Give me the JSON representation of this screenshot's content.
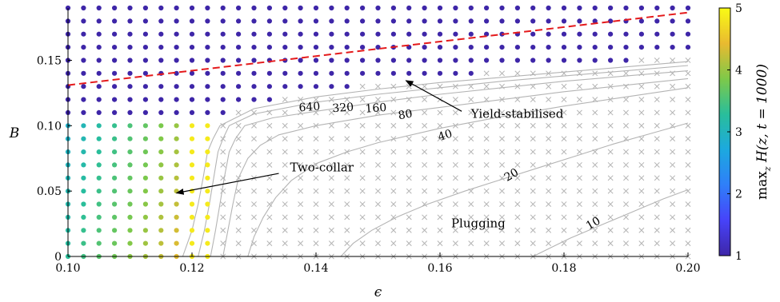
{
  "chart_data": {
    "type": "scatter",
    "xlabel": "ϵ",
    "ylabel": "B",
    "xlim": [
      0.1,
      0.2
    ],
    "ylim": [
      0,
      0.19
    ],
    "x_ticks": [
      {
        "v": 0.1,
        "label": "0.10"
      },
      {
        "v": 0.12,
        "label": "0.12"
      },
      {
        "v": 0.14,
        "label": "0.14"
      },
      {
        "v": 0.16,
        "label": "0.16"
      },
      {
        "v": 0.18,
        "label": "0.18"
      },
      {
        "v": 0.2,
        "label": "0.20"
      }
    ],
    "y_ticks": [
      {
        "v": 0,
        "label": "0"
      },
      {
        "v": 0.05,
        "label": "0.05"
      },
      {
        "v": 0.1,
        "label": "0.10"
      },
      {
        "v": 0.15,
        "label": "0.15"
      }
    ],
    "grid": {
      "x_start": 0.1,
      "x_step": 0.0025,
      "x_count": 41,
      "y_start": 0,
      "y_step": 0.01,
      "y_count": 20
    },
    "colorbar": {
      "label": "max_z H(z, t = 1000)",
      "label_main": "max",
      "label_sub": "z",
      "label_rest": " H(z, t = 1000)",
      "min": 1,
      "max": 5,
      "ticks": [
        {
          "v": 1,
          "label": "1"
        },
        {
          "v": 2,
          "label": "2"
        },
        {
          "v": 3,
          "label": "3"
        },
        {
          "v": 4,
          "label": "4"
        },
        {
          "v": 5,
          "label": "5"
        }
      ],
      "colormap": [
        "#3e26a8",
        "#4743f9",
        "#2f7ff9",
        "#1ca9df",
        "#29be9b",
        "#7ec949",
        "#e9ba30",
        "#f9fb15"
      ]
    },
    "yield_line": {
      "x": [
        0.1,
        0.2
      ],
      "y": [
        0.131,
        0.1865
      ],
      "color": "#e41a1c"
    },
    "regions": {
      "yield_stabilised": {
        "color_value": 1.0
      },
      "two_collar": {
        "x_max": 0.1225,
        "y_max": 0.1,
        "color_value_min": 3.3,
        "color_value_max": 4.7
      }
    },
    "plugging_marker": "×",
    "marker_color": "#b4b4b4",
    "contours": [
      {
        "label": "640",
        "x": [
          0.1185,
          0.12,
          0.121,
          0.1218,
          0.1225,
          0.1234,
          0.1245,
          0.13,
          0.14,
          0.15,
          0.16,
          0.17,
          0.18,
          0.19,
          0.2
        ],
        "y": [
          0.0,
          0.02,
          0.04,
          0.06,
          0.08,
          0.09,
          0.1,
          0.113,
          0.122,
          0.128,
          0.133,
          0.137,
          0.141,
          0.145,
          0.149
        ]
      },
      {
        "label": "320",
        "x": [
          0.121,
          0.122,
          0.1228,
          0.1235,
          0.1242,
          0.125,
          0.126,
          0.13,
          0.14,
          0.15,
          0.16,
          0.17,
          0.18,
          0.19,
          0.2
        ],
        "y": [
          0.0,
          0.02,
          0.04,
          0.06,
          0.08,
          0.09,
          0.1,
          0.109,
          0.118,
          0.124,
          0.129,
          0.134,
          0.138,
          0.142,
          0.146
        ]
      },
      {
        "label": "160",
        "x": [
          0.123,
          0.1238,
          0.1245,
          0.1252,
          0.126,
          0.127,
          0.1285,
          0.133,
          0.14,
          0.15,
          0.16,
          0.17,
          0.18,
          0.19,
          0.2
        ],
        "y": [
          0.0,
          0.02,
          0.04,
          0.06,
          0.08,
          0.09,
          0.1,
          0.106,
          0.111,
          0.118,
          0.124,
          0.129,
          0.134,
          0.138,
          0.142
        ]
      },
      {
        "label": "80",
        "x": [
          0.125,
          0.1258,
          0.1266,
          0.1275,
          0.129,
          0.131,
          0.134,
          0.14,
          0.15,
          0.16,
          0.17,
          0.18,
          0.19,
          0.2
        ],
        "y": [
          0.0,
          0.02,
          0.04,
          0.06,
          0.075,
          0.085,
          0.093,
          0.1,
          0.108,
          0.114,
          0.12,
          0.126,
          0.131,
          0.136
        ]
      },
      {
        "label": "40",
        "x": [
          0.129,
          0.13,
          0.1315,
          0.1335,
          0.136,
          0.14,
          0.145,
          0.15,
          0.16,
          0.17,
          0.18,
          0.19,
          0.2
        ],
        "y": [
          0.0,
          0.015,
          0.03,
          0.045,
          0.058,
          0.071,
          0.08,
          0.087,
          0.098,
          0.107,
          0.115,
          0.122,
          0.129
        ]
      },
      {
        "label": "20",
        "x": [
          0.144,
          0.146,
          0.149,
          0.153,
          0.158,
          0.164,
          0.17,
          0.176,
          0.182,
          0.188,
          0.194,
          0.2
        ],
        "y": [
          0.0,
          0.01,
          0.02,
          0.03,
          0.04,
          0.05,
          0.059,
          0.068,
          0.077,
          0.086,
          0.094,
          0.102
        ]
      },
      {
        "label": "10",
        "x": [
          0.175,
          0.178,
          0.181,
          0.184,
          0.187,
          0.19,
          0.193,
          0.196,
          0.2
        ],
        "y": [
          0.0,
          0.007,
          0.014,
          0.02,
          0.026,
          0.032,
          0.038,
          0.044,
          0.051
        ]
      }
    ],
    "contour_labels": [
      {
        "text": "640",
        "x": 0.139,
        "y": 0.1115,
        "angle": -4
      },
      {
        "text": "320",
        "x": 0.1444,
        "y": 0.111,
        "angle": -4
      },
      {
        "text": "160",
        "x": 0.1497,
        "y": 0.1107,
        "angle": -4
      },
      {
        "text": "80",
        "x": 0.1545,
        "y": 0.1058,
        "angle": -10
      },
      {
        "text": "40",
        "x": 0.161,
        "y": 0.09,
        "angle": -18
      },
      {
        "text": "20",
        "x": 0.1718,
        "y": 0.06,
        "angle": -30
      },
      {
        "text": "10",
        "x": 0.185,
        "y": 0.023,
        "angle": -30
      }
    ],
    "annotations": [
      {
        "text": "Yield-stabilised",
        "text_x": 0.165,
        "text_y": 0.106,
        "arrow_from_x": 0.1635,
        "arrow_from_y": 0.111,
        "arrow_to_x": 0.1545,
        "arrow_to_y": 0.1345
      },
      {
        "text": "Two-collar",
        "text_x": 0.1358,
        "text_y": 0.0652,
        "arrow_from_x": 0.134,
        "arrow_from_y": 0.0635,
        "arrow_to_x": 0.1175,
        "arrow_to_y": 0.0485
      },
      {
        "text": "Plugging",
        "text_x": 0.1618,
        "text_y": 0.0222
      }
    ]
  }
}
